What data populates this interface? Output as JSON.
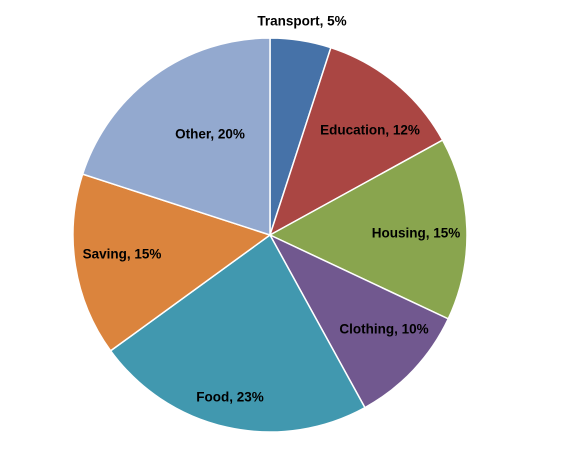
{
  "chart_data": {
    "type": "pie",
    "categories": [
      "Transport",
      "Education",
      "Housing",
      "Clothing",
      "Food",
      "Saving",
      "Other"
    ],
    "values": [
      5,
      12,
      15,
      10,
      23,
      15,
      20
    ],
    "labels": [
      "Transport, 5%",
      "Education, 12%",
      "Housing, 15%",
      "Clothing, 10%",
      "Food, 23%",
      "Saving, 15%",
      "Other, 20%"
    ],
    "colors": [
      "#4672A8",
      "#AA4643",
      "#89A54E",
      "#71588F",
      "#4198AF",
      "#DB843D",
      "#93A9CF"
    ],
    "unit": "%",
    "start_angle": "12 o'clock",
    "direction": "clockwise",
    "legend": "none",
    "title": ""
  }
}
